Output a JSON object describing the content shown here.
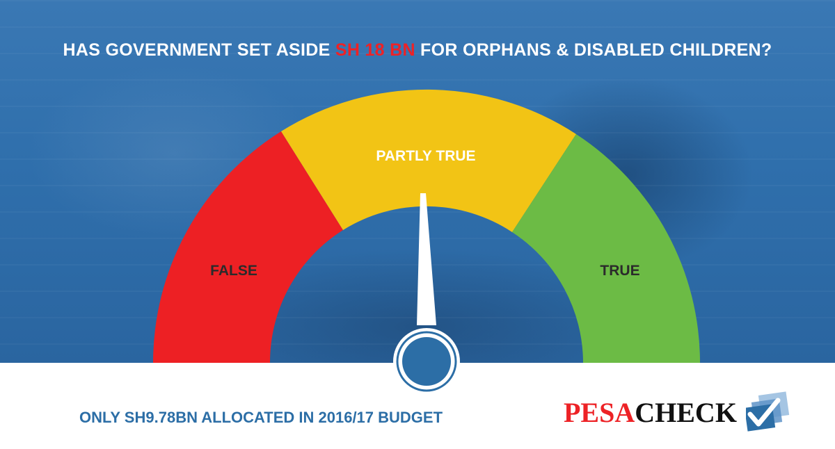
{
  "headline": {
    "prefix": "HAS GOVERNMENT SET ASIDE ",
    "highlight": "SH 18 BN",
    "suffix": " FOR ORPHANS & DISABLED CHILDREN?"
  },
  "gauge": {
    "segments": [
      {
        "label": "FALSE",
        "color": "#ed2024"
      },
      {
        "label": "PARTLY TRUE",
        "color": "#f2c415"
      },
      {
        "label": "TRUE",
        "color": "#6cbb45"
      }
    ],
    "needle_rating": "PARTLY TRUE",
    "needle_hub_color": "#2c6ea6"
  },
  "footer": {
    "verdict_note": "ONLY SH9.78BN ALLOCATED IN 2016/17 BUDGET"
  },
  "logo": {
    "part1": "PESA",
    "part2": "CHECK",
    "icon": "checkmark-icon"
  },
  "colors": {
    "background_overlay": "#2f6fac",
    "highlight": "#ed2226",
    "brand_blue": "#2c6ea6"
  }
}
